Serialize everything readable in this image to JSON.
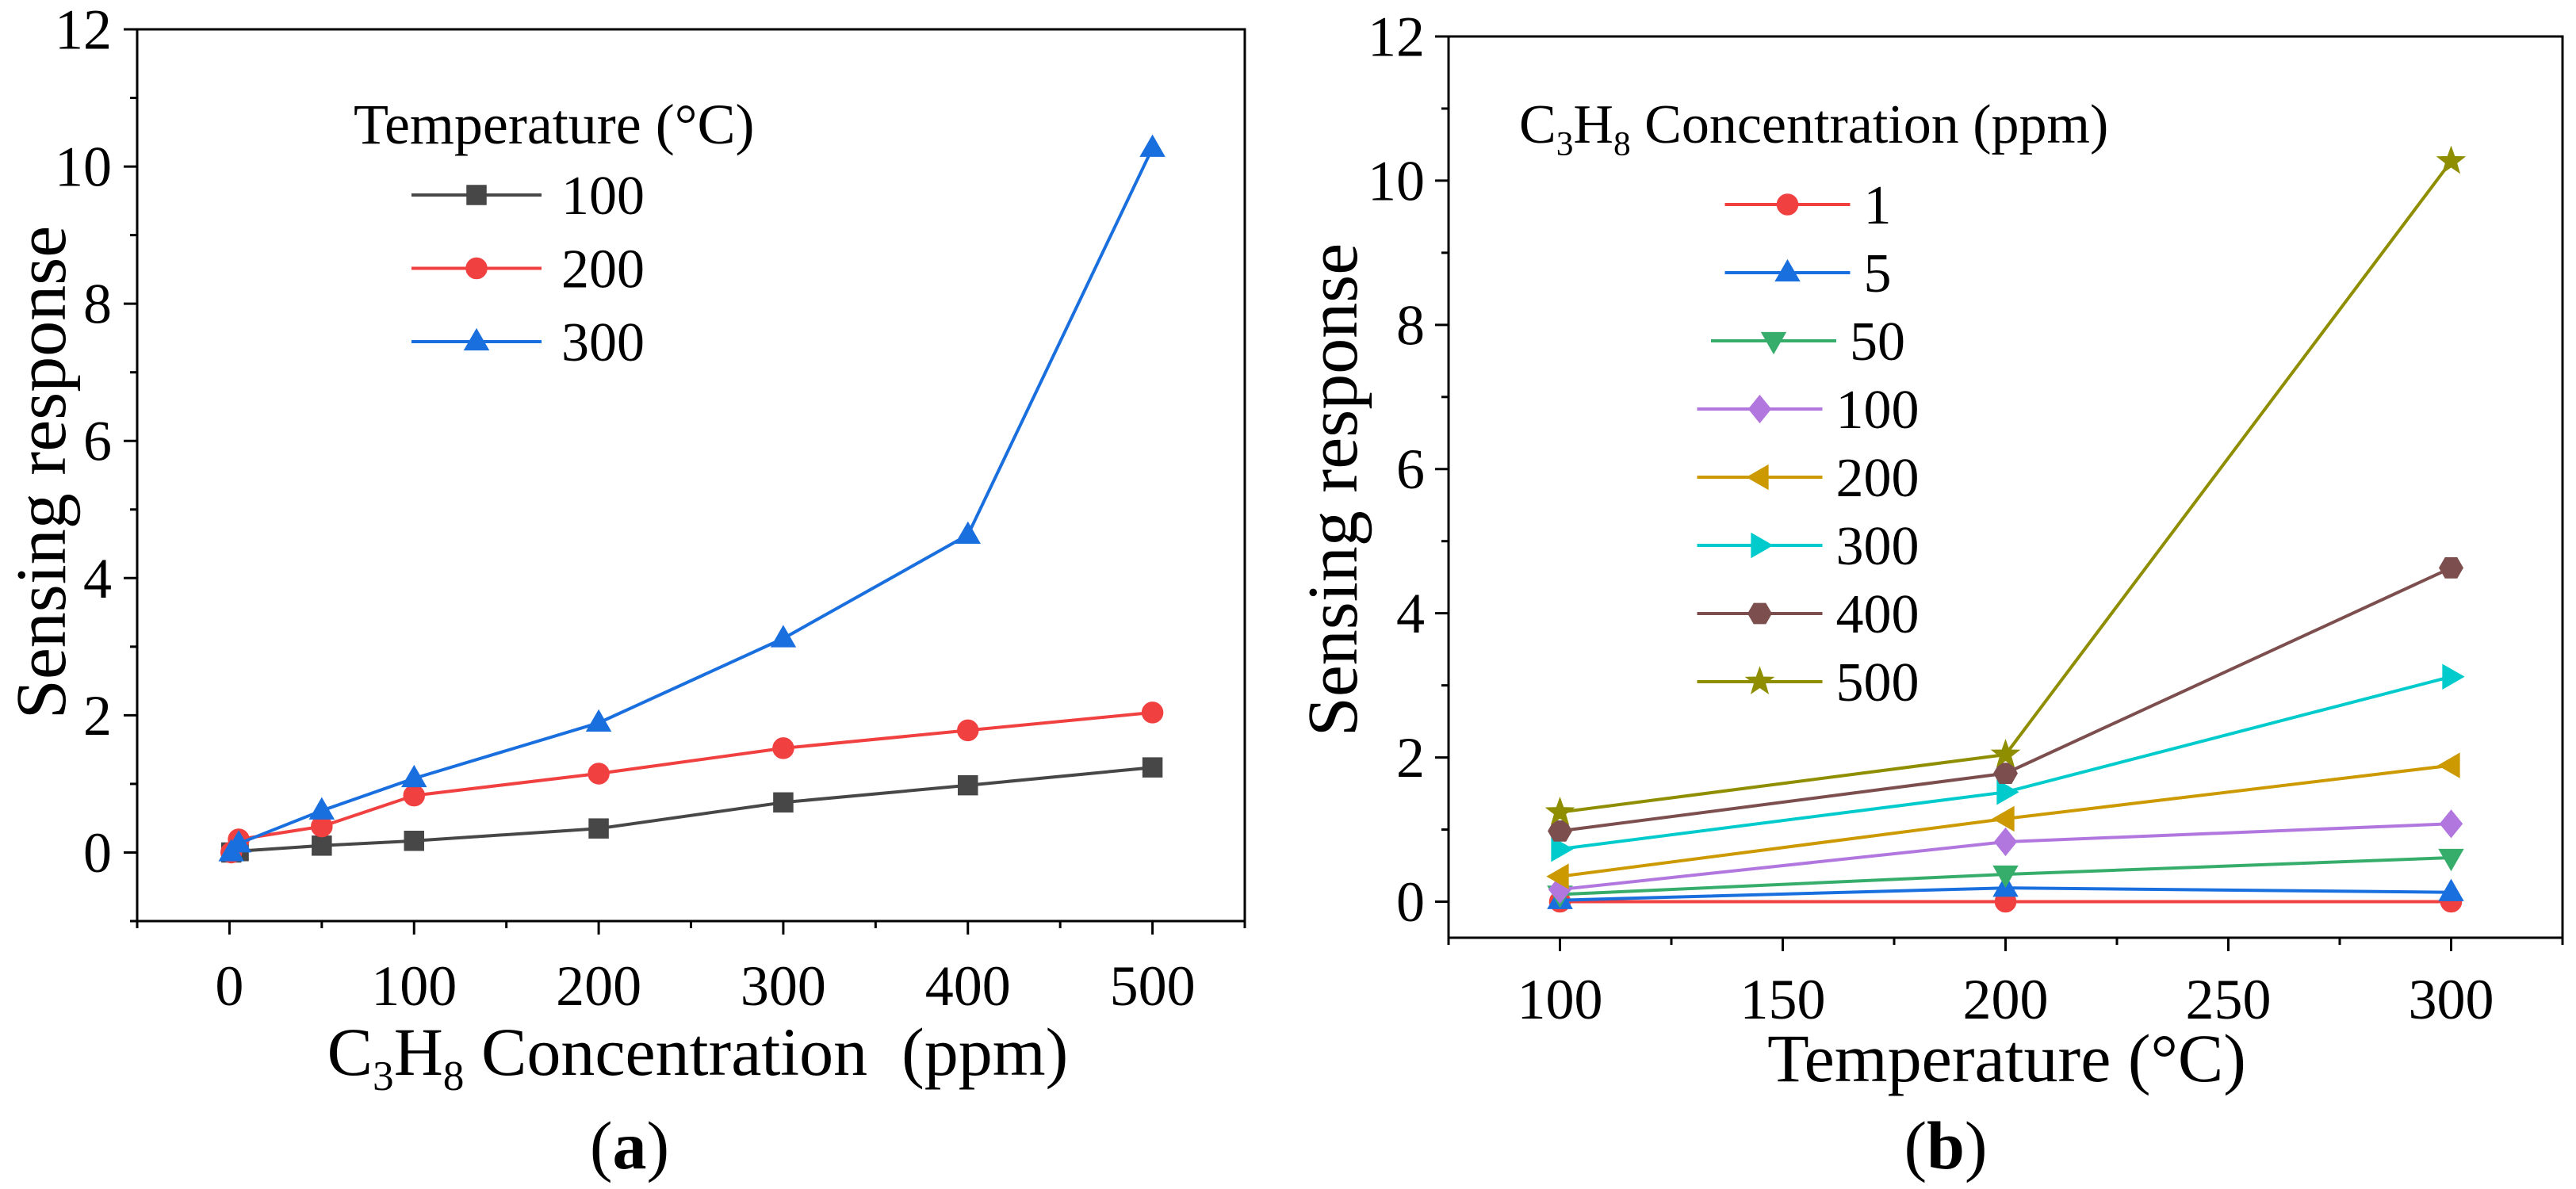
{
  "chart_data": [
    {
      "panel_label": "(a)",
      "type": "line",
      "title": "",
      "xlabel": "C3H8 Concentration  (ppm)",
      "ylabel": "Sensing response",
      "xlim": [
        -50,
        550
      ],
      "ylim": [
        -1,
        12
      ],
      "xticks": [
        0,
        100,
        200,
        300,
        400,
        500
      ],
      "yticks": [
        0,
        2,
        4,
        6,
        8,
        10,
        12
      ],
      "x_minor_step": 50,
      "y_minor_step": 1,
      "grid": false,
      "legend_title": "Temperature (°C)",
      "legend_position": "top-left",
      "x": [
        1,
        5,
        50,
        100,
        200,
        300,
        400,
        500
      ],
      "series": [
        {
          "name": "100",
          "marker": "square",
          "color": "#474747",
          "values": [
            0,
            0.02,
            0.1,
            0.17,
            0.35,
            0.73,
            0.98,
            1.24
          ]
        },
        {
          "name": "200",
          "marker": "circle",
          "color": "#F14040",
          "values": [
            0,
            0.19,
            0.38,
            0.83,
            1.15,
            1.52,
            1.78,
            2.04
          ]
        },
        {
          "name": "300",
          "marker": "triangle-up",
          "color": "#1A6FDF",
          "values": [
            0,
            0.13,
            0.61,
            1.08,
            1.89,
            3.12,
            4.63,
            10.27
          ]
        }
      ]
    },
    {
      "panel_label": "(b)",
      "type": "line",
      "title": "",
      "xlabel": "Temperature (°C)",
      "ylabel": "Sensing response",
      "xlim": [
        75,
        325
      ],
      "ylim": [
        -0.5,
        12
      ],
      "xticks": [
        100,
        150,
        200,
        250,
        300
      ],
      "yticks": [
        0,
        2,
        4,
        6,
        8,
        10,
        12
      ],
      "x_minor_step": 25,
      "y_minor_step": 1,
      "grid": false,
      "legend_title": "C3H8 Concentration (ppm)",
      "legend_position": "top-left",
      "x": [
        100,
        200,
        300
      ],
      "series": [
        {
          "name": "1",
          "marker": "circle",
          "color": "#F14040",
          "values": [
            0,
            0,
            0
          ]
        },
        {
          "name": "5",
          "marker": "triangle-up",
          "color": "#1A6FDF",
          "values": [
            0.02,
            0.19,
            0.13
          ]
        },
        {
          "name": "50",
          "marker": "triangle-down",
          "color": "#37AD6B",
          "values": [
            0.1,
            0.38,
            0.61
          ]
        },
        {
          "name": "100",
          "marker": "diamond",
          "color": "#B177DE",
          "values": [
            0.17,
            0.83,
            1.08
          ]
        },
        {
          "name": "200",
          "marker": "triangle-left",
          "color": "#CC9900",
          "values": [
            0.35,
            1.15,
            1.89
          ]
        },
        {
          "name": "300",
          "marker": "triangle-right",
          "color": "#00CBCC",
          "values": [
            0.73,
            1.52,
            3.12
          ]
        },
        {
          "name": "400",
          "marker": "hexagon",
          "color": "#7D4E4E",
          "values": [
            0.98,
            1.78,
            4.63
          ]
        },
        {
          "name": "500",
          "marker": "star",
          "color": "#8E8E00",
          "values": [
            1.24,
            2.04,
            10.27
          ]
        }
      ]
    }
  ]
}
